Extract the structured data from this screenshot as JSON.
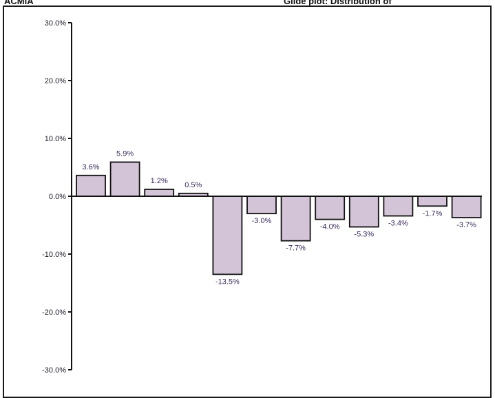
{
  "header": {
    "left": "ACMIA",
    "right": "Glide plot: Distribution of"
  },
  "chart_data": {
    "type": "bar",
    "title": "",
    "xlabel": "",
    "ylabel": "",
    "ylim": [
      -30,
      30
    ],
    "yticks": [
      "30.0%",
      "20.0%",
      "10.0%",
      "0.0%",
      "-10.0%",
      "-20.0%",
      "-30.0%"
    ],
    "grid": false,
    "bar_color": "#d4c4d8",
    "bar_edge_color": "#111111",
    "values": [
      3.6,
      5.9,
      1.2,
      0.5,
      -13.5,
      -3.0,
      -7.7,
      -4.0,
      -5.3,
      -3.4,
      -1.7,
      -3.7
    ],
    "data_labels": [
      "3.6%",
      "5.9%",
      "1.2%",
      "0.5%",
      "-13.5%",
      "-3.0%",
      "-7.7%",
      "-4.0%",
      "-5.3%",
      "-3.4%",
      "-1.7%",
      "-3.7%"
    ]
  }
}
